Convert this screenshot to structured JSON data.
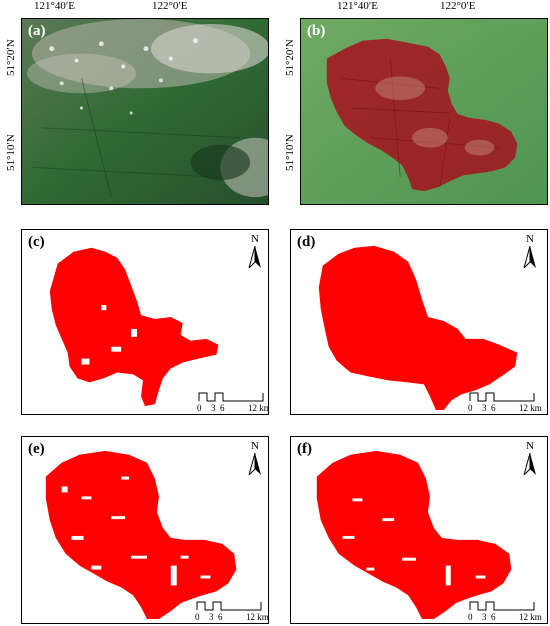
{
  "figure": {
    "panels": [
      {
        "id": "a",
        "label": "(a)",
        "kind": "pre-fire-satellite-image"
      },
      {
        "id": "b",
        "label": "(b)",
        "kind": "post-fire-satellite-image"
      },
      {
        "id": "c",
        "label": "(c)",
        "kind": "burned-area-map"
      },
      {
        "id": "d",
        "label": "(d)",
        "kind": "burned-area-map"
      },
      {
        "id": "e",
        "label": "(e)",
        "kind": "burned-area-map"
      },
      {
        "id": "f",
        "label": "(f)",
        "kind": "burned-area-map"
      }
    ],
    "axes": {
      "x_ticks": [
        "121°40′E",
        "122°0′E"
      ],
      "y_ticks": [
        "51°20′N",
        "51°10′N"
      ]
    },
    "north_arrow": {
      "label": "N"
    },
    "scale_bar": {
      "ticks": [
        "0",
        "3",
        "6",
        "12 km"
      ]
    },
    "colors": {
      "burn_red": "#ff0000",
      "forest_green": "#3d7a3a",
      "scar_red": "#a11a22",
      "cloud": "#c8c4c0"
    }
  }
}
